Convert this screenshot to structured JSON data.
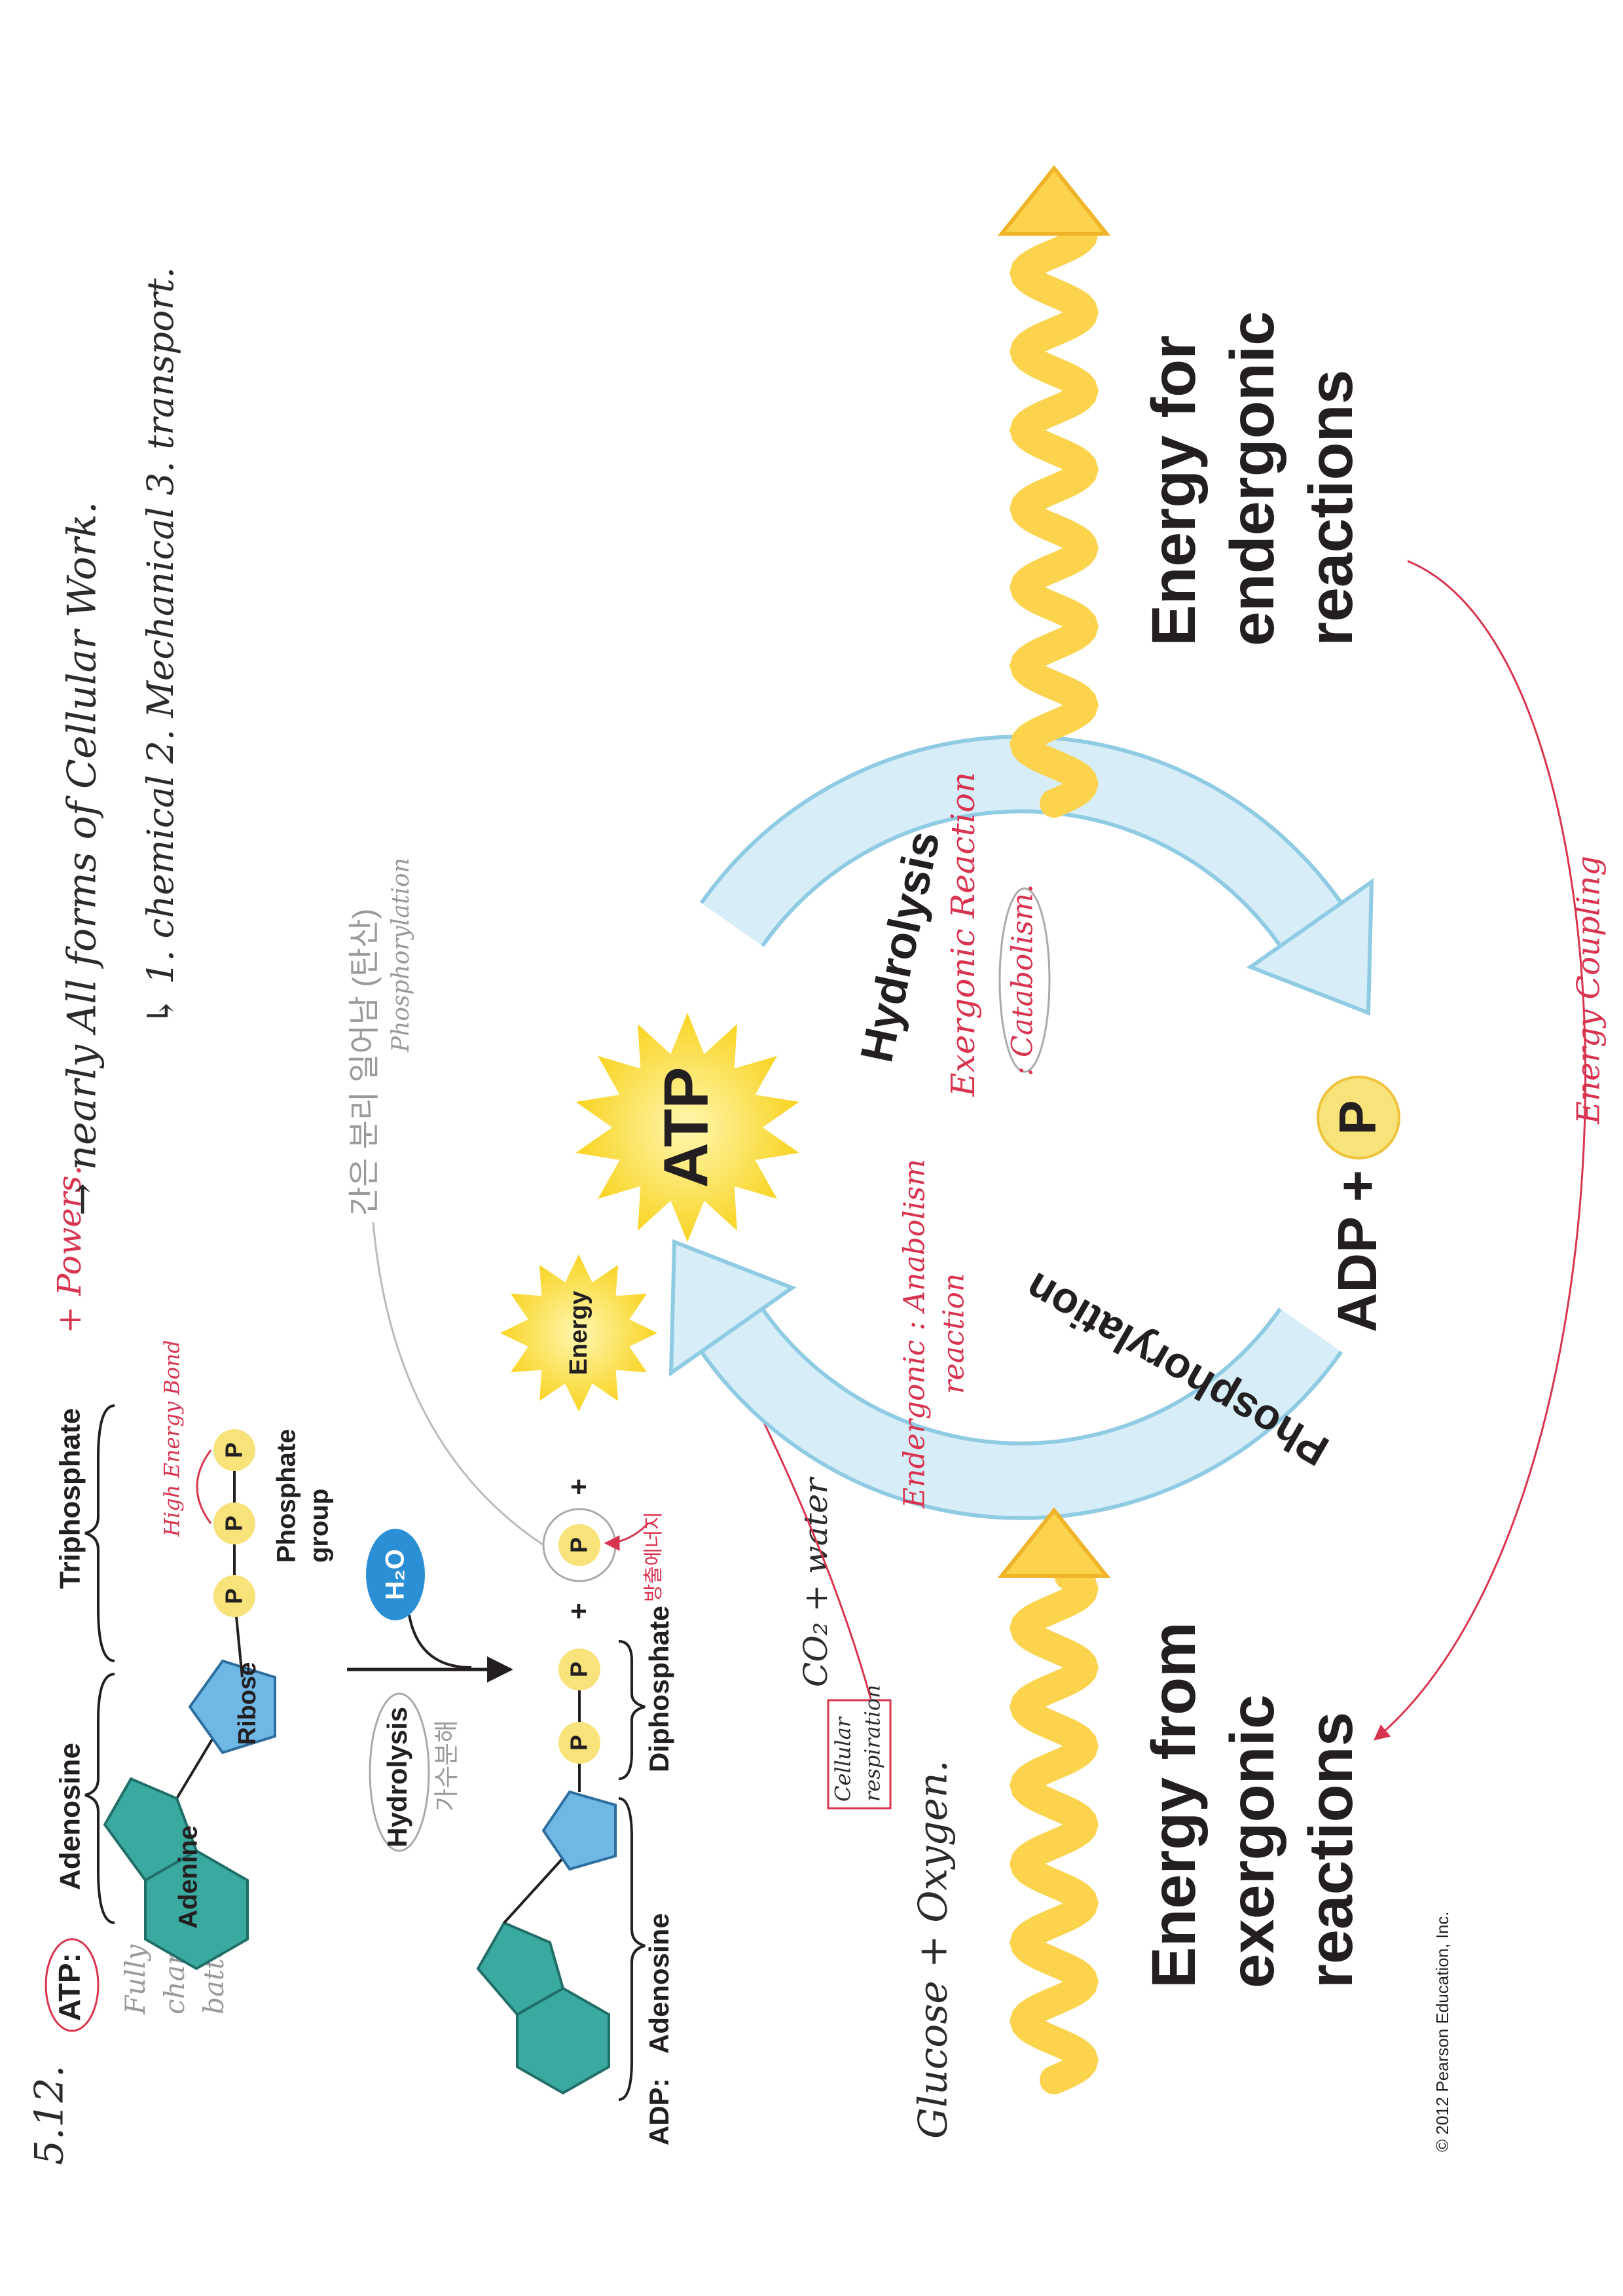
{
  "figure_number": "5.12.",
  "structure": {
    "atp_label": "ATP:",
    "atp_note": [
      "Fully",
      "charged",
      "battery"
    ],
    "adenosine": "Adenosine",
    "triphosphate": "Triphosphate",
    "powers_note": "+ Powers.",
    "adenine": "Adenine",
    "ribose": "Ribose",
    "phosphate": "P",
    "phosphate_group": [
      "Phosphate",
      "group"
    ],
    "bond_note": "High Energy Bond",
    "water": "H₂O",
    "hydrolysis": "Hydrolysis",
    "hydrolysis_note": "가수분해",
    "adp_label": "ADP:",
    "adp_adenosine": "Adenosine",
    "diphosphate": "Diphosphate",
    "plus": "+",
    "energy": "Energy",
    "released_note": "방출에너지"
  },
  "notes": {
    "work": "→ nearly All forms of Cellular Work.",
    "work_types": "↳ 1. chemical  2. Mechanical  3. transport.",
    "korean": "간은 분리 일어남 (탄산)",
    "phosphorylation": "Phosphorylation",
    "glucose": "Glucose + Oxygen.",
    "respiration": [
      "Cellular",
      "respiration"
    ],
    "products": "CO₂ + water"
  },
  "cycle": {
    "atp": "ATP",
    "adp": "ADP +",
    "phosphate": "P",
    "hydrolysis": "Hydrolysis",
    "exergonic_note": "Exergonic Reaction",
    "catabolism_note": ": Catabolism.",
    "phosphorylation": "Phosphorylation",
    "endergonic_note": [
      "Endergonic : Anabolism",
      "reaction"
    ],
    "energy_for": [
      "Energy for",
      "endergonic",
      "reactions"
    ],
    "energy_from": [
      "Energy from",
      "exergonic",
      "reactions"
    ],
    "coupling_note": "Energy Coupling"
  },
  "copyright": "© 2012 Pearson Education, Inc."
}
